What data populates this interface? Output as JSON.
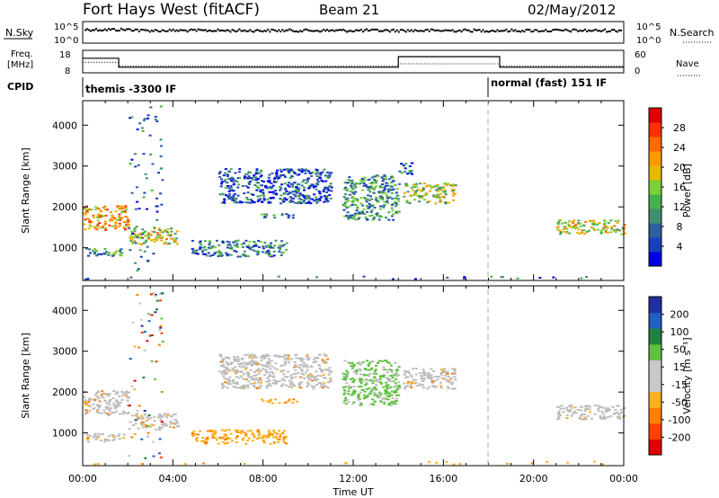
{
  "header": {
    "station": "Fort Hays West (fitACF)",
    "beam": "Beam 21",
    "date": "02/May/2012"
  },
  "top_panels": {
    "nsky_label": "N.Sky",
    "nsearch_label": "N.Search",
    "nsky_ticks": [
      "10^5",
      "10^0"
    ],
    "nsearch_ticks": [
      "10^5",
      "10^0"
    ],
    "freq_label_line1": "Freq.",
    "freq_label_line2": "[MHz]",
    "freq_ticks": [
      "18",
      "8"
    ],
    "nave_label": "Nave",
    "nave_ticks": [
      "60",
      "0"
    ],
    "cpid_label": "CPID",
    "cpid_modes": [
      {
        "label": "themis -3300 IF",
        "start_hour": 0
      },
      {
        "label": "normal (fast) 151 IF",
        "start_hour": 18
      }
    ],
    "freq_trace": [
      [
        0,
        14.5
      ],
      [
        1.6,
        14.5
      ],
      [
        1.6,
        10.5
      ],
      [
        14.0,
        10.5
      ],
      [
        14.0,
        15.2
      ],
      [
        18.5,
        15.2
      ],
      [
        18.5,
        10.5
      ],
      [
        24,
        10.5
      ]
    ],
    "nave_trace": [
      [
        0,
        28
      ],
      [
        1.6,
        28
      ],
      [
        1.6,
        18
      ],
      [
        14.0,
        18
      ],
      [
        14.0,
        24
      ],
      [
        18.5,
        24
      ],
      [
        18.5,
        18
      ],
      [
        24,
        18
      ]
    ]
  },
  "colors": {
    "power_scale": [
      "#0000e6",
      "#1a3fbf",
      "#2f5f9f",
      "#3f8f6f",
      "#46b04a",
      "#7ad03a",
      "#e8b800",
      "#ff9a00",
      "#ff6a00",
      "#ff3000",
      "#e00000"
    ],
    "velocity_scale": [
      "#2030a0",
      "#2060c0",
      "#208040",
      "#60c040",
      "#c8c8c8",
      "#c8c8c8",
      "#ffb020",
      "#ff8000",
      "#ff4000",
      "#e00000"
    ],
    "ground_scatter": "#bcbcbc"
  },
  "chart_data": [
    {
      "type": "heatmap",
      "name": "power-panel",
      "ylabel": "Slant Range [km]",
      "ylim": [
        200,
        4600
      ],
      "xlim": [
        0,
        24
      ],
      "y_ticks": [
        1000,
        2000,
        3000,
        4000
      ],
      "colorbar_label": "Power [dB]",
      "colorbar_ticks": [
        "28",
        "24",
        "20",
        "16",
        "12",
        "8",
        "4"
      ],
      "echo_regions": [
        {
          "t0": 0.0,
          "t1": 2.0,
          "r0": 1450,
          "r1": 2050,
          "level": 0.7
        },
        {
          "t0": 0.1,
          "t1": 1.8,
          "r0": 800,
          "r1": 1000,
          "level": 0.35
        },
        {
          "t0": 2.0,
          "t1": 4.2,
          "r0": 1100,
          "r1": 1500,
          "level": 0.55
        },
        {
          "t0": 4.8,
          "t1": 9.0,
          "r0": 800,
          "r1": 1200,
          "level": 0.25
        },
        {
          "t0": 7.8,
          "t1": 9.5,
          "r0": 1750,
          "r1": 1850,
          "level": 0.3
        },
        {
          "t0": 6.0,
          "t1": 11.0,
          "r0": 2100,
          "r1": 2950,
          "level": 0.15
        },
        {
          "t0": 11.5,
          "t1": 14.0,
          "r0": 1700,
          "r1": 2800,
          "level": 0.3
        },
        {
          "t0": 14.2,
          "t1": 16.5,
          "r0": 2100,
          "r1": 2600,
          "level": 0.5
        },
        {
          "t0": 14.0,
          "t1": 14.6,
          "r0": 2800,
          "r1": 3100,
          "level": 0.2
        },
        {
          "t0": 21.0,
          "t1": 24.0,
          "r0": 1350,
          "r1": 1700,
          "level": 0.55
        },
        {
          "t0": 2.0,
          "t1": 3.5,
          "r0": 400,
          "r1": 4500,
          "level": 0.2
        },
        {
          "t0": 0.0,
          "t1": 24.0,
          "r0": 250,
          "r1": 320,
          "level": 0.2
        }
      ]
    },
    {
      "type": "heatmap",
      "name": "velocity-panel",
      "ylabel": "Slant Range [km]",
      "xlabel": "Time UT",
      "ylim": [
        200,
        4600
      ],
      "xlim": [
        0,
        24
      ],
      "y_ticks": [
        1000,
        2000,
        3000,
        4000
      ],
      "x_ticks": [
        "00:00",
        "04:00",
        "08:00",
        "12:00",
        "16:00",
        "20:00",
        "00:00"
      ],
      "x_tick_hours": [
        0,
        4,
        8,
        12,
        16,
        20,
        24
      ],
      "colorbar_label": "Velocity [m s⁻¹]",
      "colorbar_ticks": [
        "200",
        "100",
        "50",
        "15",
        "-15",
        "-50",
        "-100",
        "-200"
      ],
      "echo_regions": [
        {
          "t0": 0.0,
          "t1": 2.0,
          "r0": 1450,
          "r1": 2050,
          "kind": "ground"
        },
        {
          "t0": 0.1,
          "t1": 1.8,
          "r0": 800,
          "r1": 1000,
          "kind": "ground"
        },
        {
          "t0": 2.0,
          "t1": 4.2,
          "r0": 1100,
          "r1": 1500,
          "kind": "ground"
        },
        {
          "t0": 4.8,
          "t1": 9.0,
          "r0": 750,
          "r1": 1100,
          "kind": "away"
        },
        {
          "t0": 7.8,
          "t1": 9.5,
          "r0": 1750,
          "r1": 1850,
          "kind": "away"
        },
        {
          "t0": 6.0,
          "t1": 11.0,
          "r0": 2100,
          "r1": 2950,
          "kind": "ground"
        },
        {
          "t0": 11.5,
          "t1": 14.0,
          "r0": 1700,
          "r1": 2800,
          "kind": "toward"
        },
        {
          "t0": 14.2,
          "t1": 16.5,
          "r0": 2100,
          "r1": 2600,
          "kind": "ground"
        },
        {
          "t0": 21.0,
          "t1": 24.0,
          "r0": 1350,
          "r1": 1700,
          "kind": "ground"
        },
        {
          "t0": 2.0,
          "t1": 3.5,
          "r0": 400,
          "r1": 4500,
          "kind": "mixed"
        },
        {
          "t0": 0.0,
          "t1": 24.0,
          "r0": 250,
          "r1": 320,
          "kind": "away"
        }
      ]
    }
  ]
}
